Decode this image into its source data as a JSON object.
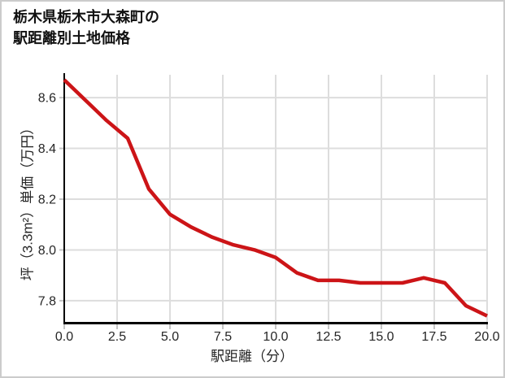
{
  "page": {
    "title_line1": "栃木県栃木市大森町の",
    "title_line2": "駅距離別土地価格"
  },
  "chart_data": {
    "type": "line",
    "title": "栃木県栃木市大森町の駅距離別土地価格",
    "xlabel": "駅距離（分）",
    "ylabel": "坪（3.3m²）単価（万円）",
    "x": [
      0,
      1,
      2,
      3,
      4,
      5,
      6,
      7,
      8,
      9,
      10,
      11,
      12,
      13,
      14,
      15,
      16,
      17,
      18,
      19,
      20
    ],
    "y": [
      8.67,
      8.59,
      8.51,
      8.44,
      8.24,
      8.14,
      8.09,
      8.05,
      8.02,
      8.0,
      7.97,
      7.91,
      7.88,
      7.88,
      7.87,
      7.87,
      7.87,
      7.89,
      7.87,
      7.78,
      7.74
    ],
    "xlim": [
      0,
      20
    ],
    "ylim": [
      7.71,
      8.69
    ],
    "x_ticks": [
      0,
      2.5,
      5,
      7.5,
      10,
      12.5,
      15,
      17.5,
      20
    ],
    "x_tick_labels": [
      "0.0",
      "2.5",
      "5.0",
      "7.5",
      "10.0",
      "12.5",
      "15.0",
      "17.5",
      "20.0"
    ],
    "y_ticks": [
      7.8,
      8.0,
      8.2,
      8.4,
      8.6
    ],
    "y_tick_labels": [
      "7.8",
      "8.0",
      "8.2",
      "8.4",
      "8.6"
    ],
    "grid": true,
    "legend": false
  },
  "colors": {
    "line": "#cc1417",
    "grid": "#dddddd",
    "tick": "#c4c4c4",
    "spine": "#000000",
    "text": "#262626",
    "border": "#cccccc",
    "background": "#ffffff"
  }
}
